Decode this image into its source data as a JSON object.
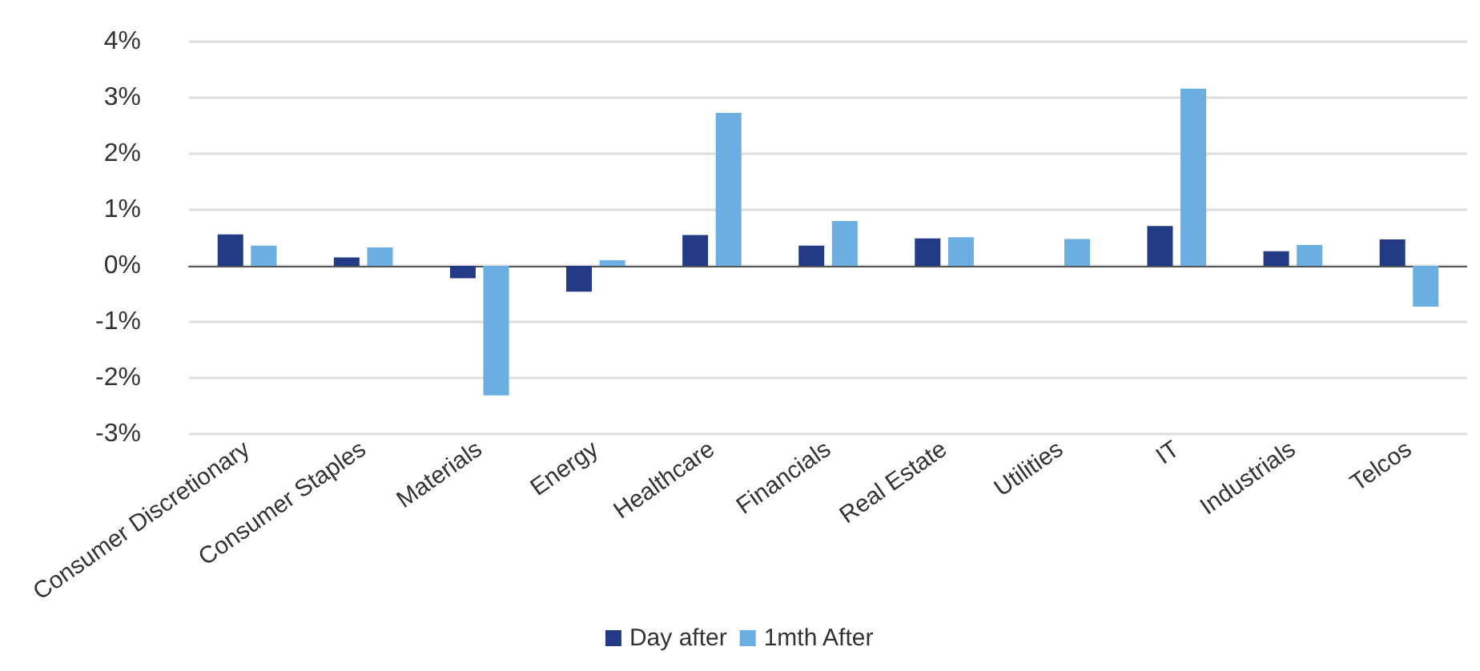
{
  "chart_data": {
    "type": "bar",
    "categories": [
      "Consumer Discretionary",
      "Consumer Staples",
      "Materials",
      "Energy",
      "Healthcare",
      "Financials",
      "Real Estate",
      "Utilities",
      "IT",
      "Industrials",
      "Telcos"
    ],
    "series": [
      {
        "name": "Day after",
        "color": "#233b84",
        "values": [
          0.56,
          0.15,
          -0.22,
          -0.46,
          0.55,
          0.36,
          0.49,
          0,
          0.71,
          0.26,
          0.47
        ]
      },
      {
        "name": "1mth After",
        "color": "#6aaee2",
        "values": [
          0.36,
          0.33,
          -2.31,
          0.1,
          2.73,
          0.8,
          0.51,
          0.48,
          3.16,
          0.37,
          -0.73
        ]
      }
    ],
    "ylim": [
      -3,
      4
    ],
    "yticks": [
      {
        "value": -3,
        "label": "-3%"
      },
      {
        "value": -2,
        "label": "-2%"
      },
      {
        "value": -1,
        "label": "-1%"
      },
      {
        "value": 0,
        "label": "0%"
      },
      {
        "value": 1,
        "label": "1%"
      },
      {
        "value": 2,
        "label": "2%"
      },
      {
        "value": 3,
        "label": "3%"
      },
      {
        "value": 4,
        "label": "4%"
      }
    ],
    "grid": "y",
    "legend": "bottom"
  }
}
